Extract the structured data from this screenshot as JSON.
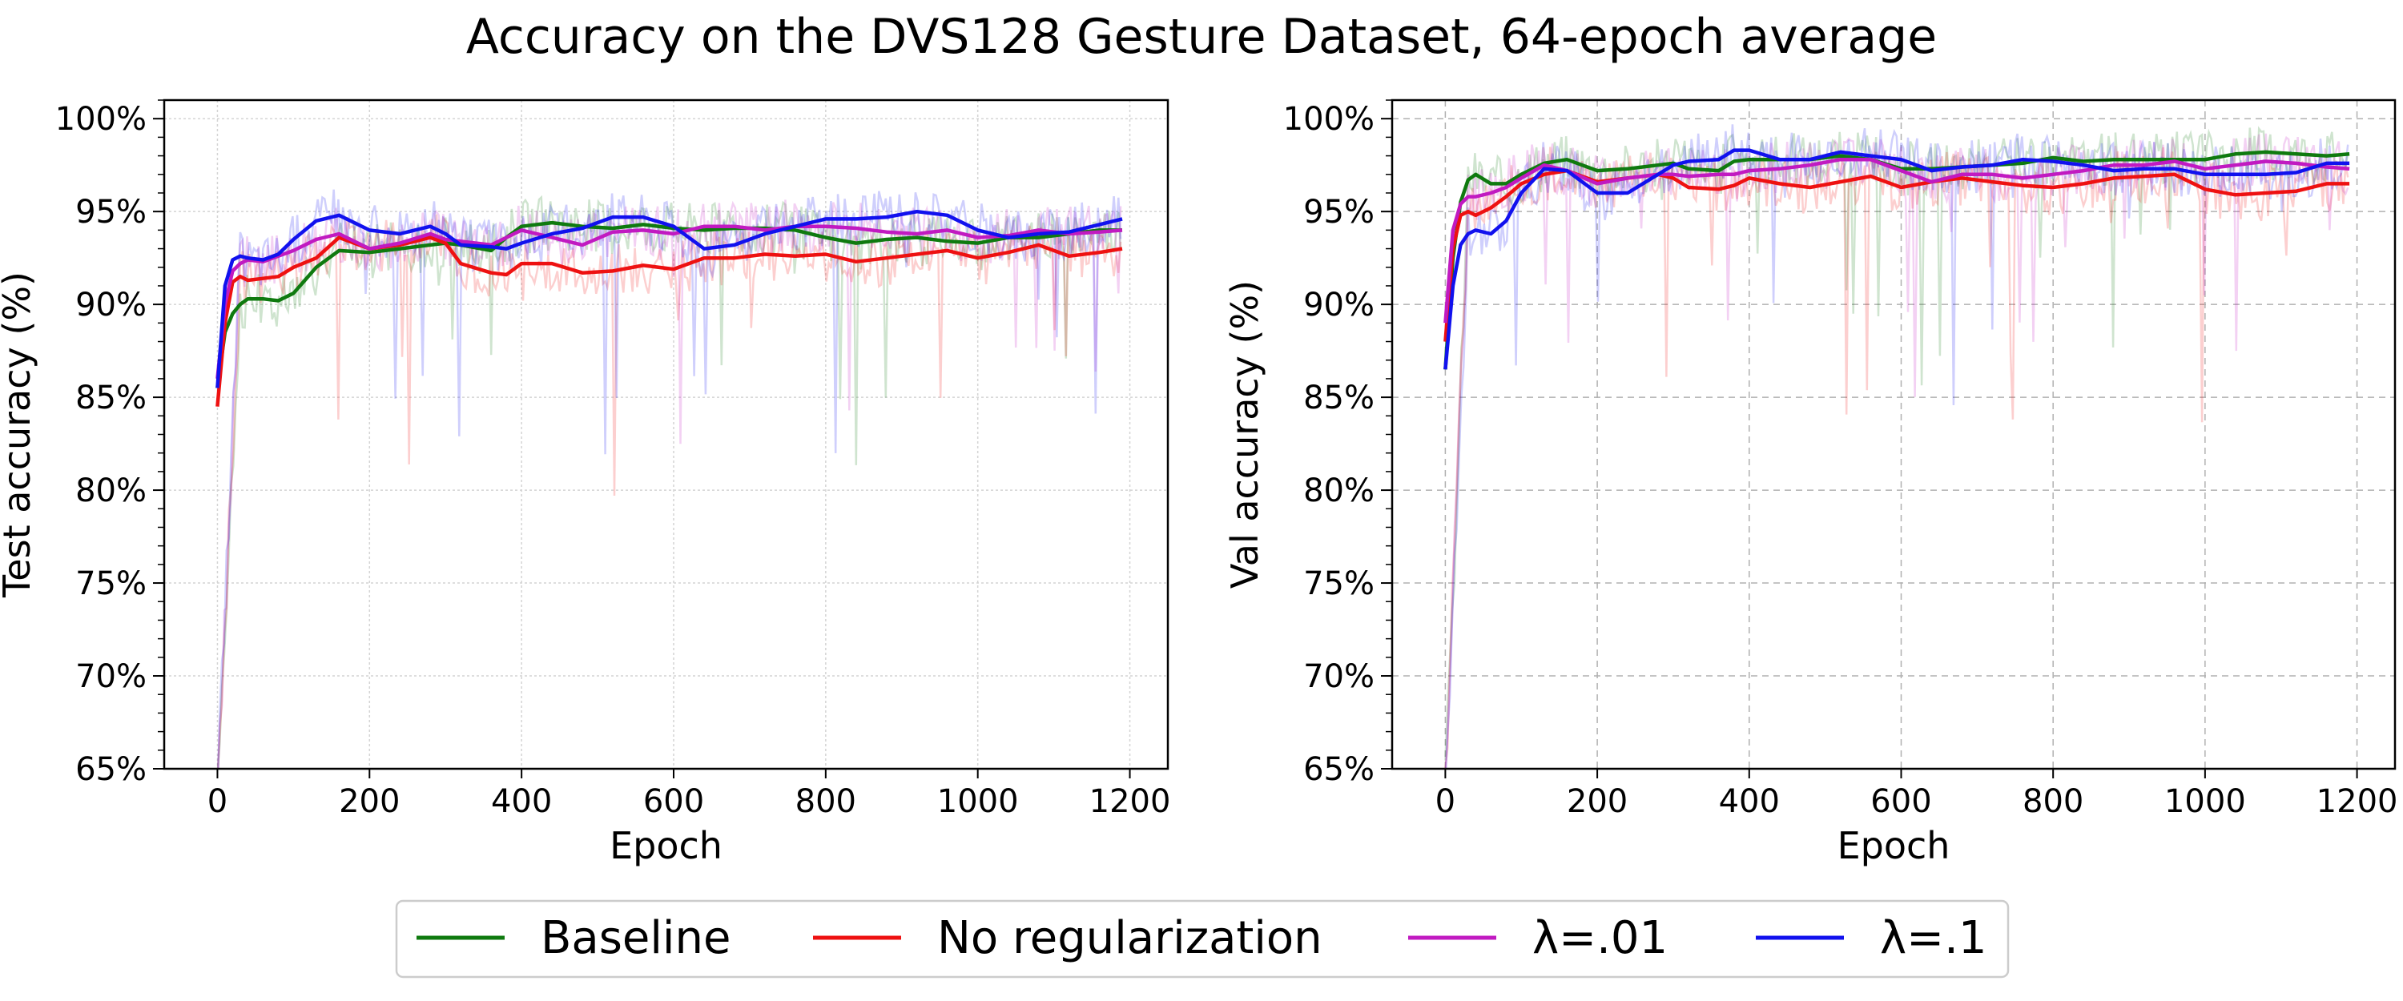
{
  "title": "Accuracy on the DVS128 Gesture Dataset, 64-epoch average",
  "colors": {
    "Baseline": "#0f7a0f",
    "No regularization": "#ee1111",
    "λ=.01": "#c11ac1",
    "λ=.1": "#1111ee"
  },
  "legend": {
    "placement": "bottom-center",
    "entries": [
      "Baseline",
      "No regularization",
      "λ=.01",
      "λ=.1"
    ]
  },
  "chart_data": [
    {
      "type": "line",
      "xlabel": "Epoch",
      "ylabel": "Test accuracy (%)",
      "xlim": [
        -70,
        1250
      ],
      "ylim": [
        65,
        101
      ],
      "xticks": [
        0,
        200,
        400,
        600,
        800,
        1000,
        1200
      ],
      "yticks": [
        65,
        70,
        75,
        80,
        85,
        90,
        95,
        100
      ],
      "ytick_labels": [
        "65%",
        "70%",
        "75%",
        "80%",
        "85%",
        "90%",
        "95%",
        "100%"
      ],
      "grid": true,
      "series": [
        {
          "name": "Baseline",
          "x": [
            0,
            10,
            20,
            30,
            40,
            60,
            80,
            100,
            130,
            160,
            200,
            240,
            280,
            300,
            320,
            360,
            380,
            400,
            440,
            480,
            520,
            560,
            600,
            640,
            680,
            720,
            760,
            800,
            840,
            880,
            920,
            960,
            1000,
            1040,
            1080,
            1120,
            1160,
            1190
          ],
          "y": [
            85.5,
            88.5,
            89.5,
            90,
            90.3,
            90.3,
            90.2,
            90.6,
            92,
            92.9,
            92.8,
            93,
            93.2,
            93.3,
            93.2,
            92.9,
            93.6,
            94.2,
            94.4,
            94.2,
            94.1,
            94.3,
            94.1,
            94,
            94.1,
            94.1,
            94,
            93.6,
            93.3,
            93.5,
            93.6,
            93.4,
            93.3,
            93.6,
            93.6,
            93.8,
            94,
            94
          ]
        },
        {
          "name": "No regularization",
          "x": [
            0,
            10,
            20,
            30,
            40,
            60,
            80,
            100,
            130,
            160,
            200,
            240,
            280,
            300,
            320,
            360,
            380,
            400,
            440,
            480,
            520,
            560,
            600,
            640,
            680,
            720,
            760,
            800,
            840,
            880,
            920,
            960,
            1000,
            1040,
            1080,
            1120,
            1160,
            1190
          ],
          "y": [
            84.5,
            89,
            91.2,
            91.5,
            91.3,
            91.4,
            91.5,
            92,
            92.5,
            93.6,
            93,
            93.2,
            93.6,
            93.3,
            92.2,
            91.7,
            91.6,
            92.2,
            92.2,
            91.7,
            91.8,
            92.1,
            91.9,
            92.5,
            92.5,
            92.7,
            92.6,
            92.7,
            92.3,
            92.5,
            92.7,
            92.9,
            92.5,
            92.8,
            93.2,
            92.6,
            92.8,
            93
          ]
        },
        {
          "name": "λ=.01",
          "x": [
            0,
            10,
            20,
            30,
            40,
            60,
            80,
            100,
            130,
            160,
            200,
            240,
            280,
            300,
            320,
            360,
            380,
            400,
            440,
            480,
            520,
            560,
            600,
            640,
            680,
            720,
            760,
            800,
            840,
            880,
            920,
            960,
            1000,
            1040,
            1080,
            1120,
            1160,
            1190
          ],
          "y": [
            86,
            90,
            91.8,
            92.2,
            92.4,
            92.3,
            92.6,
            92.9,
            93.5,
            93.8,
            93,
            93.3,
            93.8,
            93.5,
            93.4,
            93.2,
            93.6,
            94,
            93.6,
            93.2,
            93.9,
            94,
            93.8,
            94.2,
            94.2,
            94,
            94.2,
            94.2,
            94.1,
            93.9,
            93.8,
            94,
            93.6,
            93.7,
            94,
            93.8,
            93.9,
            94
          ]
        },
        {
          "name": "λ=.1",
          "x": [
            0,
            10,
            20,
            30,
            40,
            60,
            80,
            100,
            130,
            160,
            200,
            240,
            280,
            300,
            320,
            360,
            380,
            400,
            440,
            480,
            520,
            560,
            600,
            640,
            680,
            720,
            760,
            800,
            840,
            880,
            920,
            960,
            1000,
            1040,
            1080,
            1120,
            1160,
            1190
          ],
          "y": [
            85.5,
            91,
            92.4,
            92.6,
            92.5,
            92.4,
            92.7,
            93.5,
            94.5,
            94.8,
            94,
            93.8,
            94.2,
            93.8,
            93.2,
            93.1,
            93,
            93.3,
            93.8,
            94.1,
            94.7,
            94.7,
            94.2,
            93,
            93.2,
            93.8,
            94.2,
            94.6,
            94.6,
            94.7,
            95,
            94.8,
            94,
            93.6,
            93.8,
            93.9,
            94.3,
            94.6
          ]
        }
      ]
    },
    {
      "type": "line",
      "xlabel": "Epoch",
      "ylabel": "Val accuracy (%)",
      "xlim": [
        -70,
        1250
      ],
      "ylim": [
        65,
        101
      ],
      "xticks": [
        0,
        200,
        400,
        600,
        800,
        1000,
        1200
      ],
      "yticks": [
        65,
        70,
        75,
        80,
        85,
        90,
        95,
        100
      ],
      "ytick_labels": [
        "65%",
        "70%",
        "75%",
        "80%",
        "85%",
        "90%",
        "95%",
        "100%"
      ],
      "grid": true,
      "series": [
        {
          "name": "Baseline",
          "x": [
            0,
            10,
            20,
            30,
            40,
            60,
            80,
            100,
            130,
            160,
            200,
            240,
            280,
            300,
            320,
            360,
            380,
            400,
            440,
            480,
            520,
            560,
            600,
            640,
            680,
            720,
            760,
            800,
            840,
            880,
            920,
            960,
            1000,
            1040,
            1080,
            1120,
            1160,
            1190
          ],
          "y": [
            86.5,
            92.5,
            95.5,
            96.7,
            97,
            96.5,
            96.5,
            97,
            97.6,
            97.8,
            97.2,
            97.3,
            97.5,
            97.6,
            97.3,
            97.2,
            97.7,
            97.8,
            97.8,
            97.8,
            98,
            97.8,
            97.3,
            97.3,
            97.4,
            97.5,
            97.6,
            97.9,
            97.7,
            97.8,
            97.8,
            97.8,
            97.8,
            98.1,
            98.2,
            98.1,
            98,
            98.1
          ]
        },
        {
          "name": "No regularization",
          "x": [
            0,
            10,
            20,
            30,
            40,
            60,
            80,
            100,
            130,
            160,
            200,
            240,
            280,
            300,
            320,
            360,
            380,
            400,
            440,
            480,
            520,
            560,
            600,
            640,
            680,
            720,
            760,
            800,
            840,
            880,
            920,
            960,
            1000,
            1040,
            1080,
            1120,
            1160,
            1190
          ],
          "y": [
            88,
            93,
            94.8,
            95,
            94.8,
            95.2,
            95.8,
            96.5,
            97,
            97.2,
            96.6,
            96.8,
            97,
            96.8,
            96.3,
            96.2,
            96.4,
            96.8,
            96.5,
            96.3,
            96.6,
            96.9,
            96.3,
            96.6,
            96.8,
            96.6,
            96.4,
            96.3,
            96.5,
            96.8,
            96.9,
            97,
            96.2,
            95.9,
            96,
            96.1,
            96.5,
            96.5
          ]
        },
        {
          "name": "λ=.01",
          "x": [
            0,
            10,
            20,
            30,
            40,
            60,
            80,
            100,
            130,
            160,
            200,
            240,
            280,
            300,
            320,
            360,
            380,
            400,
            440,
            480,
            520,
            560,
            600,
            640,
            680,
            720,
            760,
            800,
            840,
            880,
            920,
            960,
            1000,
            1040,
            1080,
            1120,
            1160,
            1190
          ],
          "y": [
            89,
            94,
            95.4,
            95.8,
            95.8,
            96,
            96.3,
            96.8,
            97.5,
            97.2,
            96.5,
            96.8,
            97,
            97,
            96.9,
            97,
            97,
            97.2,
            97.3,
            97.5,
            97.8,
            97.8,
            97.2,
            96.6,
            97,
            97,
            96.8,
            97,
            97.2,
            97.5,
            97.5,
            97.7,
            97.3,
            97.5,
            97.7,
            97.6,
            97.4,
            97.3
          ]
        },
        {
          "name": "λ=.1",
          "x": [
            0,
            10,
            20,
            30,
            40,
            60,
            80,
            100,
            130,
            160,
            200,
            240,
            280,
            300,
            320,
            360,
            380,
            400,
            440,
            480,
            520,
            560,
            600,
            640,
            680,
            720,
            760,
            800,
            840,
            880,
            920,
            960,
            1000,
            1040,
            1080,
            1120,
            1160,
            1190
          ],
          "y": [
            86.5,
            91,
            93.2,
            93.8,
            94,
            93.8,
            94.5,
            96,
            97.3,
            97.2,
            96,
            96,
            97,
            97.5,
            97.7,
            97.8,
            98.3,
            98.3,
            97.8,
            97.8,
            98.2,
            98,
            97.8,
            97.2,
            97.4,
            97.5,
            97.8,
            97.7,
            97.5,
            97.2,
            97.3,
            97.3,
            97,
            97,
            97,
            97.1,
            97.6,
            97.6
          ]
        }
      ]
    }
  ]
}
